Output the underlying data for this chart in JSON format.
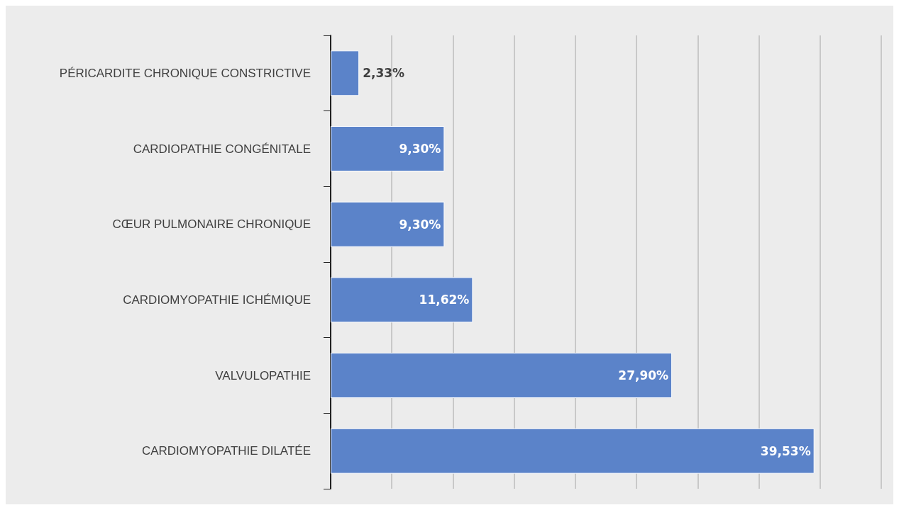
{
  "chart_data": {
    "type": "bar",
    "orientation": "horizontal",
    "categories": [
      "PÉRICARDITE CHRONIQUE CONSTRICTIVE",
      "CARDIOPATHIE CONGÉNITALE",
      "CŒUR PULMONAIRE CHRONIQUE",
      "CARDIOMYOPATHIE ICHÉMIQUE",
      "VALVULOPATHIE",
      "CARDIOMYOPATHIE DILATÉE"
    ],
    "values": [
      2.33,
      9.3,
      9.3,
      11.62,
      27.9,
      39.53
    ],
    "value_labels": [
      "2,33%",
      "9,30%",
      "9,30%",
      "11,62%",
      "27,90%",
      "39,53%"
    ],
    "color": "#5b83c9",
    "xlim": [
      0,
      45
    ],
    "xticks": [
      {
        "value": 0,
        "label": null
      },
      {
        "value": 5,
        "label": null
      },
      {
        "value": 10,
        "label": null
      },
      {
        "value": 15,
        "label": null
      },
      {
        "value": 20,
        "label": null
      },
      {
        "value": 25,
        "label": null
      },
      {
        "value": 30,
        "label": null
      },
      {
        "value": 35,
        "label": null
      },
      {
        "value": 40,
        "label": null
      },
      {
        "value": 45,
        "label": null
      }
    ],
    "grid": "x",
    "tick_labels": "y"
  }
}
